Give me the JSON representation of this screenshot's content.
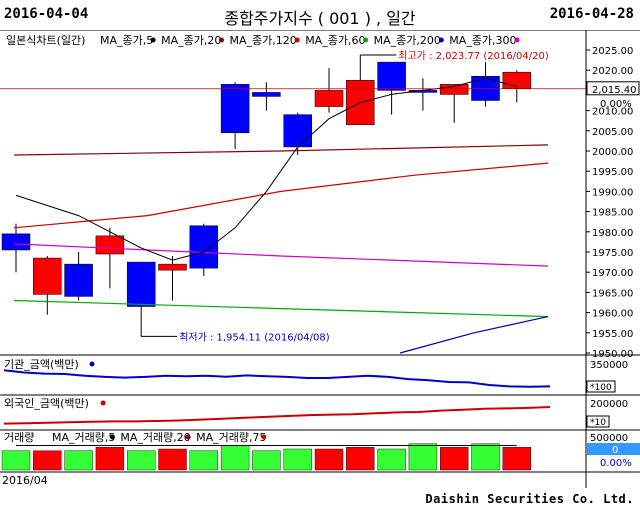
{
  "header": {
    "start_date": "2016-04-04",
    "title": "종합주가지수 ( 001 ) , 일간",
    "end_date": "2016-04-28"
  },
  "footer": {
    "month_label": "2016/04",
    "brand": "Daishin Securities Co. Ltd."
  },
  "chart_data": [
    {
      "type": "candlestick",
      "legend_main": "일본식차트(일간)",
      "legend": [
        {
          "name": "MA_종가,5",
          "color": "#000000"
        },
        {
          "name": "MA_종가,20",
          "color": "#8b0000"
        },
        {
          "name": "MA_종가,120",
          "color": "#cc0000"
        },
        {
          "name": "MA_종가,60",
          "color": "#00aa00"
        },
        {
          "name": "MA_종가,200",
          "color": "#0000aa"
        },
        {
          "name": "MA_종가,300",
          "color": "#cc00cc"
        }
      ],
      "ylim": [
        1950,
        2025
      ],
      "y_ticks": [
        "2025.00",
        "2020.00",
        "2015.00",
        "2010.00",
        "2005.00",
        "2000.00",
        "1995.00",
        "1990.00",
        "1985.00",
        "1980.00",
        "1975.00",
        "1970.00",
        "1965.00",
        "1960.00",
        "1955.00",
        "1950.00"
      ],
      "current_value": "2,015.40",
      "current_change": "0.00%",
      "high_annotation": "최고가 : 2,023.77 (2016/04/20)",
      "low_annotation": "최저가 : 1,954.11 (2016/04/08)",
      "candles": [
        {
          "open": 1979.5,
          "high": 1982,
          "low": 1970,
          "close": 1975.5
        },
        {
          "open": 1964.5,
          "high": 1974,
          "low": 1959.5,
          "close": 1973.5
        },
        {
          "open": 1972,
          "high": 1975,
          "low": 1963,
          "close": 1964
        },
        {
          "open": 1974.5,
          "high": 1981,
          "low": 1966,
          "close": 1979
        },
        {
          "open": 1972.5,
          "high": 1972.5,
          "low": 1954.1,
          "close": 1961.5
        },
        {
          "open": 1970.5,
          "high": 1974,
          "low": 1963,
          "close": 1972
        },
        {
          "open": 1981.5,
          "high": 1982,
          "low": 1969,
          "close": 1971
        },
        {
          "open": 2016.5,
          "high": 2017,
          "low": 2000.5,
          "close": 2004.5
        },
        {
          "open": 2014.5,
          "high": 2017,
          "low": 2010,
          "close": 2013.5
        },
        {
          "open": 2009,
          "high": 2009.5,
          "low": 1999,
          "close": 2001
        },
        {
          "open": 2011,
          "high": 2020.5,
          "low": 2009.5,
          "close": 2015
        },
        {
          "open": 2006.5,
          "high": 2023.77,
          "low": 2006.5,
          "close": 2017.5
        },
        {
          "open": 2022,
          "high": 2022,
          "low": 2009,
          "close": 2015
        },
        {
          "open": 2015,
          "high": 2018,
          "low": 2010,
          "close": 2014.5
        },
        {
          "open": 2014,
          "high": 2016,
          "low": 2007,
          "close": 2016.5
        },
        {
          "open": 2018.5,
          "high": 2022,
          "low": 2011,
          "close": 2012.5
        },
        {
          "open": 2015.5,
          "high": 2020,
          "low": 2012,
          "close": 2019.5
        }
      ],
      "ma5": [
        1989,
        null,
        1984,
        1980,
        1976,
        1973,
        1975,
        1981,
        1990,
        2001,
        2008,
        2012,
        2014,
        2015,
        2016,
        2018,
        2016
      ],
      "ma20": [
        1999,
        2000,
        2001.5
      ],
      "ma120": [
        1981,
        1984,
        1990,
        1994,
        1997
      ],
      "ma60": [
        1963,
        1961,
        1959
      ],
      "ma200": [
        1950,
        1955,
        1959
      ],
      "ma300": [
        1977,
        1974,
        1971.5
      ]
    },
    {
      "type": "line",
      "legend_main": "기관_금액(백만)",
      "y_tick": "350000",
      "scale_label": "*100",
      "color": "#0000cc",
      "values": [
        0.85,
        0.75,
        0.7,
        0.68,
        0.6,
        0.55,
        0.52,
        0.55,
        0.6,
        0.58,
        0.6,
        0.56,
        0.62,
        0.58,
        0.55,
        0.5,
        0.5,
        0.55,
        0.6,
        0.55,
        0.45,
        0.4,
        0.32,
        0.3,
        0.18,
        0.12,
        0.1,
        0.12
      ]
    },
    {
      "type": "line",
      "legend_main": "외국인_금액(백만)",
      "y_tick": "200000",
      "scale_label": "*10",
      "color": "#cc0000",
      "values": [
        0.08,
        0.1,
        0.12,
        0.15,
        0.18,
        0.2,
        0.2,
        0.22,
        0.25,
        0.3,
        0.35,
        0.4,
        0.45,
        0.5,
        0.55,
        0.58,
        0.6,
        0.65,
        0.7,
        0.72,
        0.8,
        0.85,
        0.9,
        0.92,
        0.95,
        1.0
      ]
    },
    {
      "type": "bar",
      "legend_main": "거래량",
      "legend": [
        {
          "name": "MA_거래량,5",
          "color": "#000000"
        },
        {
          "name": "MA_거래량,20",
          "color": "#8b0000"
        },
        {
          "name": "MA_거래량,75",
          "color": "#cc0000"
        }
      ],
      "y_tick": "500000",
      "current_value": "0",
      "current_change": "0.00%",
      "volume_values": [
        0.55,
        0.55,
        0.55,
        0.65,
        0.55,
        0.6,
        0.55,
        0.7,
        0.55,
        0.6,
        0.6,
        0.65,
        0.6,
        0.75,
        0.65,
        0.75,
        0.65
      ]
    }
  ]
}
